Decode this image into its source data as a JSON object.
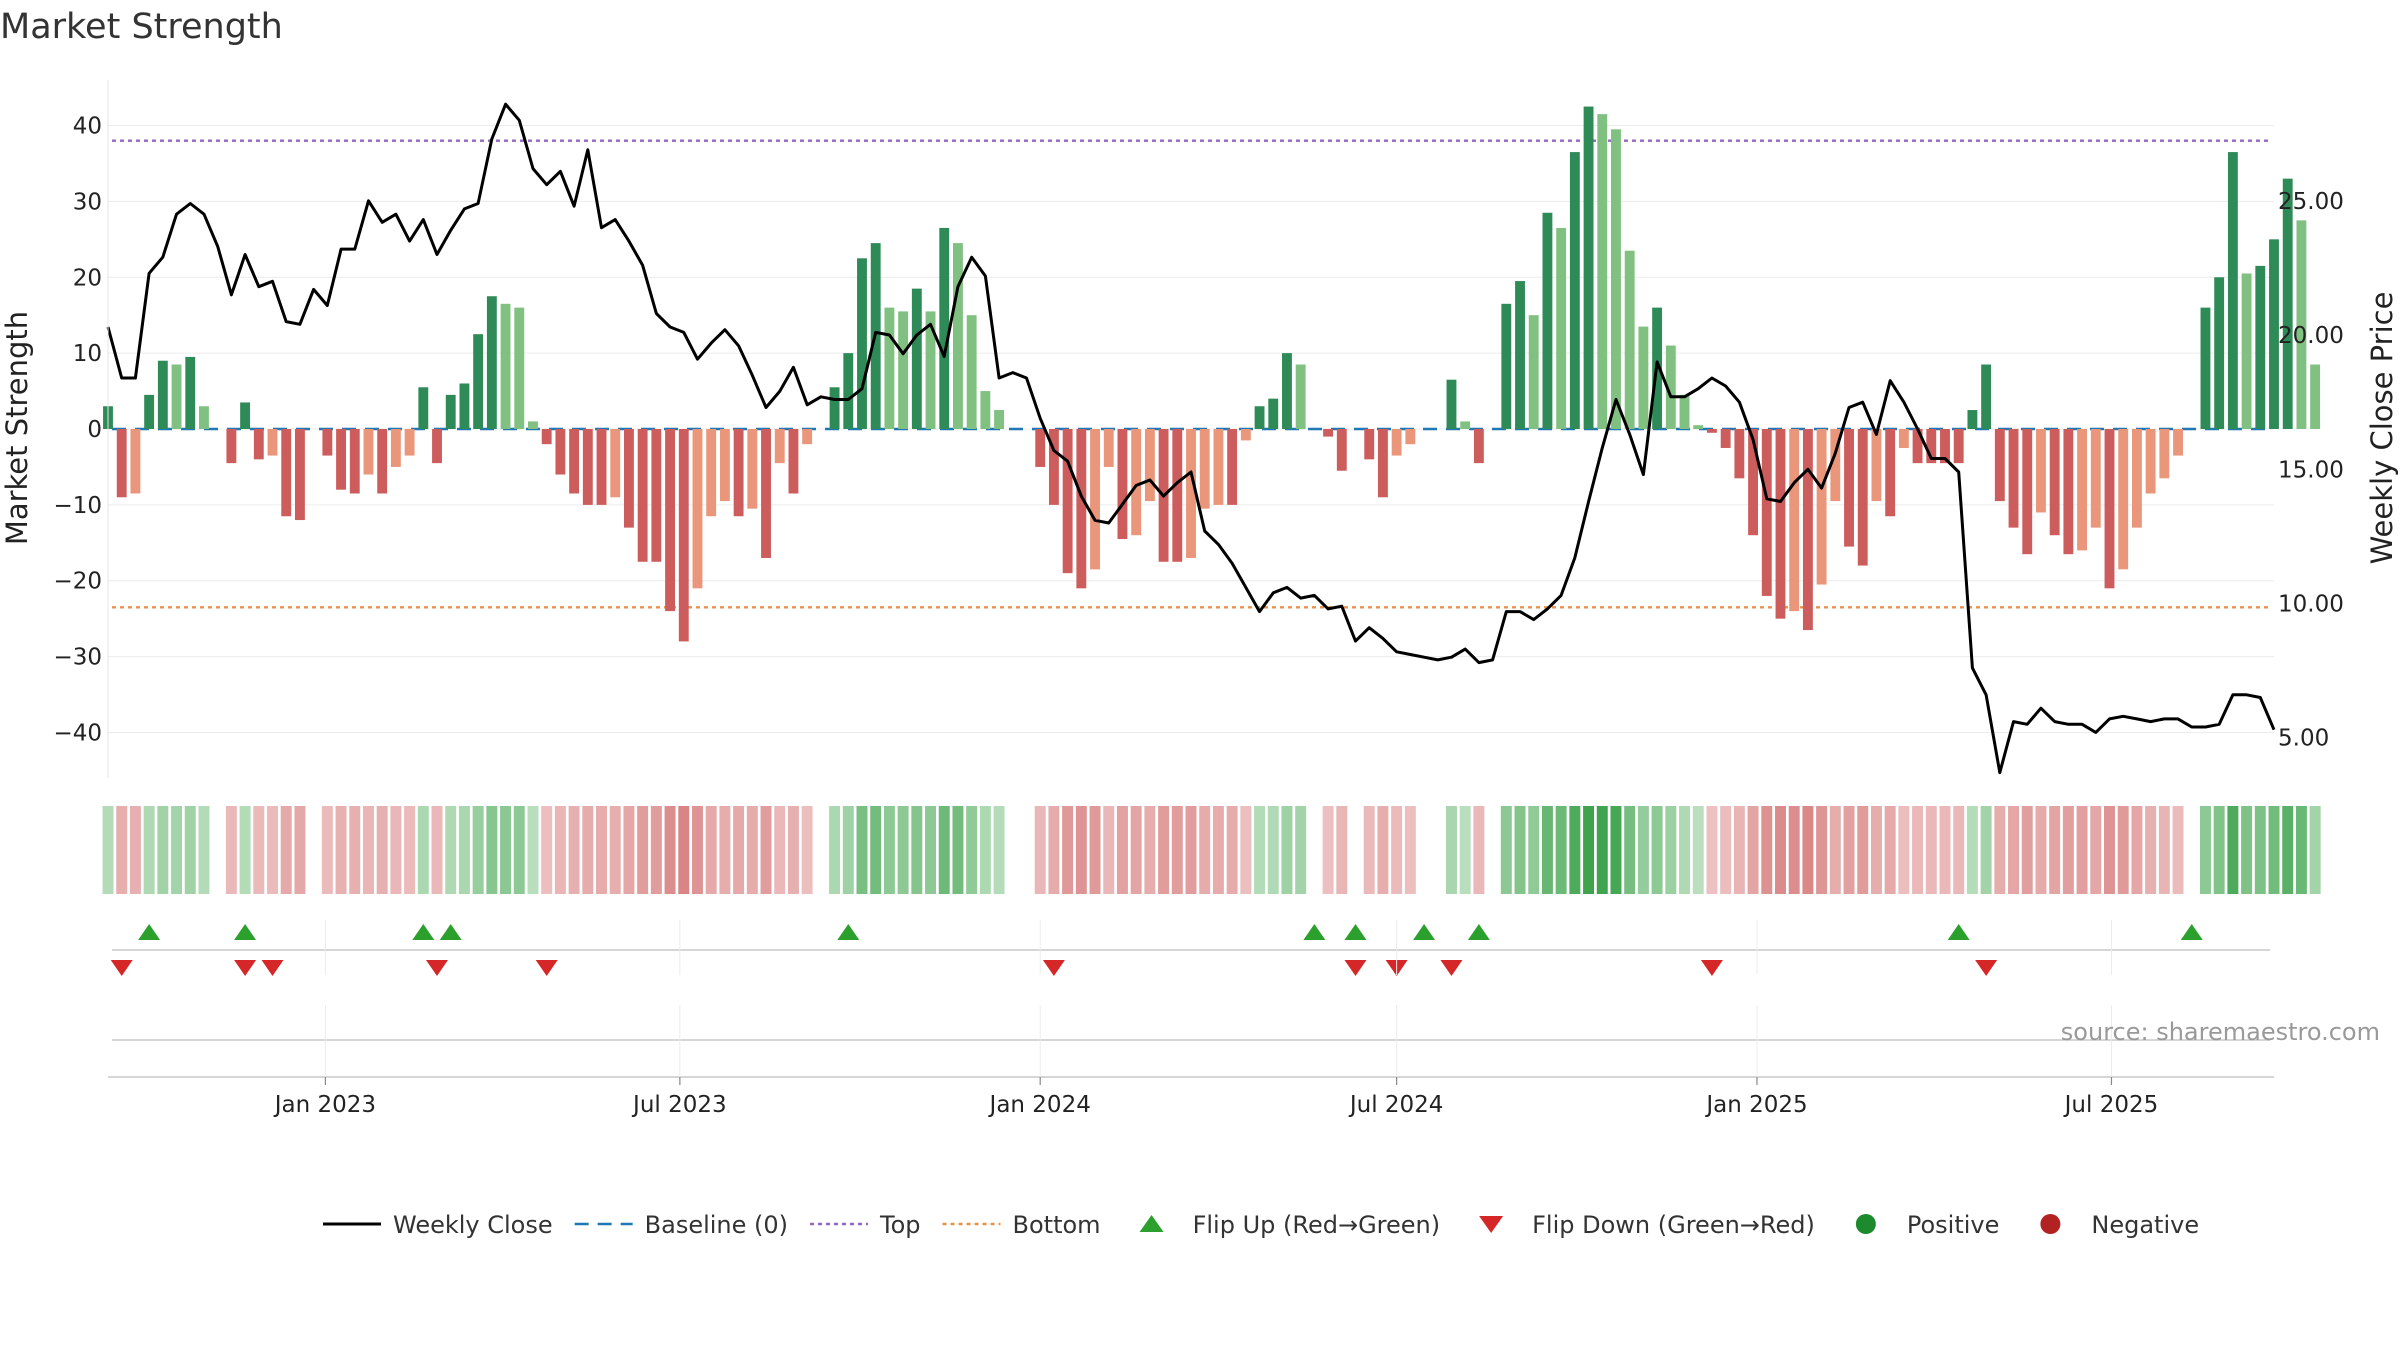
{
  "chart_data": {
    "type": "bar",
    "title": "Market Strength",
    "source": "source: sharemaestro.com",
    "ylabel_left": "Market Strength",
    "ylabel_right": "Weekly Close Price",
    "y_left": {
      "range": [
        -46,
        46
      ],
      "ticks": [
        40,
        30,
        20,
        10,
        0,
        -10,
        -20,
        -30,
        -40
      ],
      "tick_labels": [
        "40",
        "30",
        "20",
        "10",
        "0",
        "−10",
        "−20",
        "−30",
        "−40"
      ]
    },
    "y_right": {
      "range": [
        3.5,
        29.5
      ],
      "ticks": [
        25,
        20,
        15,
        10,
        5
      ],
      "tick_labels": [
        "25.00",
        "20.00",
        "15.00",
        "10.00",
        "5.00"
      ]
    },
    "x_range": [
      "2022-09-12",
      "2025-09-22"
    ],
    "x_ticks": [
      {
        "date": "2023-01-01",
        "label": "Jan 2023"
      },
      {
        "date": "2023-07-01",
        "label": "Jul 2023"
      },
      {
        "date": "2024-01-01",
        "label": "Jan 2024"
      },
      {
        "date": "2024-07-01",
        "label": "Jul 2024"
      },
      {
        "date": "2025-01-01",
        "label": "Jan 2025"
      },
      {
        "date": "2025-07-01",
        "label": "Jul 2025"
      }
    ],
    "start_date": "2022-09-12",
    "week_step_days": 7,
    "lines": {
      "top": 38,
      "baseline": 0,
      "bottom": -23.5
    },
    "strength": [
      3,
      -9,
      -8.5,
      4.5,
      9,
      8.5,
      9.5,
      3,
      0,
      -4.5,
      3.5,
      -4,
      -3.5,
      -11.5,
      -12,
      0,
      -3.5,
      -8,
      -8.5,
      -6,
      -8.5,
      -5,
      -3.5,
      5.5,
      -4.5,
      4.5,
      6,
      12.5,
      17.5,
      16.5,
      16,
      1,
      -2,
      -6,
      -8.5,
      -10,
      -10,
      -9,
      -13,
      -17.5,
      -17.5,
      -24,
      -28,
      -21,
      -11.5,
      -9.5,
      -11.5,
      -10.5,
      -17,
      -4.5,
      -8.5,
      -2,
      0,
      5.5,
      10,
      22.5,
      24.5,
      16,
      15.5,
      18.5,
      15.5,
      26.5,
      24.5,
      15,
      5,
      2.5,
      0,
      0,
      -5,
      -10,
      -19,
      -21,
      -18.5,
      -5,
      -14.5,
      -14,
      -9.5,
      -17.5,
      -17.5,
      -17,
      -10.5,
      -10,
      -10,
      -1.5,
      3,
      4,
      10,
      8.5,
      0,
      -1,
      -5.5,
      0,
      -4,
      -9,
      -3.5,
      -2,
      0,
      0,
      6.5,
      1,
      -4.5,
      0,
      16.5,
      19.5,
      15,
      28.5,
      26.5,
      36.5,
      42.5,
      41.5,
      39.5,
      23.5,
      13.5,
      16,
      11,
      4.5,
      0.5,
      -0.5,
      -2.5,
      -6.5,
      -14,
      -22,
      -25,
      -24,
      -26.5,
      -20.5,
      -9.5,
      -15.5,
      -18,
      -9.5,
      -11.5,
      -2.5,
      -4.5,
      -4.5,
      -4.5,
      -4.5,
      2.5,
      8.5,
      -9.5,
      -13,
      -16.5,
      -11,
      -14,
      -16.5,
      -16,
      -13,
      -21,
      -18.5,
      -13,
      -8.5,
      -6.5,
      -3.5,
      0,
      16,
      20,
      36.5,
      20.5,
      21.5,
      25,
      33,
      27.5,
      8.5
    ],
    "price": [
      20.3,
      18.4,
      18.4,
      22.3,
      22.9,
      24.5,
      24.9,
      24.5,
      23.3,
      21.5,
      23.0,
      21.8,
      22.0,
      20.5,
      20.4,
      21.7,
      21.1,
      23.2,
      23.2,
      25.0,
      24.2,
      24.5,
      23.5,
      24.3,
      23.0,
      23.9,
      24.7,
      24.9,
      27.3,
      28.6,
      28.0,
      26.2,
      25.6,
      26.1,
      24.8,
      26.9,
      24.0,
      24.3,
      23.5,
      22.6,
      20.8,
      20.3,
      20.1,
      19.1,
      19.7,
      20.2,
      19.6,
      18.5,
      17.3,
      17.9,
      18.8,
      17.4,
      17.7,
      17.6,
      17.6,
      18.0,
      20.1,
      20.0,
      19.3,
      20.0,
      20.4,
      19.2,
      21.8,
      22.9,
      22.2,
      18.4,
      18.6,
      18.4,
      16.9,
      15.7,
      15.3,
      14.0,
      13.1,
      13.0,
      13.7,
      14.4,
      14.6,
      14.0,
      14.5,
      14.9,
      12.7,
      12.2,
      11.5,
      10.6,
      9.7,
      10.4,
      10.6,
      10.2,
      10.3,
      9.8,
      9.9,
      8.6,
      9.1,
      8.7,
      8.2,
      8.1,
      8.0,
      7.9,
      8.0,
      8.3,
      7.8,
      7.9,
      9.7,
      9.7,
      9.4,
      9.8,
      10.3,
      11.7,
      13.8,
      15.8,
      17.6,
      16.3,
      14.8,
      19.0,
      17.7,
      17.7,
      18.0,
      18.4,
      18.1,
      17.5,
      16.1,
      13.9,
      13.8,
      14.5,
      15.0,
      14.3,
      15.6,
      17.3,
      17.5,
      16.3,
      18.3,
      17.5,
      16.5,
      15.4,
      15.4,
      14.9,
      7.6,
      6.6,
      3.7,
      5.6,
      5.5,
      6.1,
      5.6,
      5.5,
      5.5,
      5.2,
      5.7,
      5.8,
      5.7,
      5.6,
      5.7,
      5.7,
      5.4,
      5.4,
      5.5,
      6.6,
      6.6,
      6.5,
      5.3
    ],
    "flip_up": [
      "2022-10-03",
      "2022-11-21",
      "2023-02-20",
      "2023-03-06",
      "2023-09-25",
      "2024-05-20",
      "2024-06-10",
      "2024-07-15",
      "2024-08-12",
      "2025-04-14",
      "2025-08-11"
    ],
    "flip_down": [
      "2022-09-19",
      "2022-11-21",
      "2022-12-05",
      "2023-02-27",
      "2023-04-24",
      "2024-01-08",
      "2024-06-10",
      "2024-07-01",
      "2024-07-29",
      "2024-12-09",
      "2025-04-28"
    ],
    "legend": [
      {
        "label": "Weekly Close",
        "kind": "line",
        "color": "#000000"
      },
      {
        "label": "Baseline (0)",
        "kind": "dashed",
        "color": "#1f77b4"
      },
      {
        "label": "Top",
        "kind": "dotted",
        "color": "#9467bd"
      },
      {
        "label": "Bottom",
        "kind": "dotted",
        "color": "#e8924a"
      },
      {
        "label": "Flip Up (Red→Green)",
        "kind": "tri-up",
        "color": "#2ca02c"
      },
      {
        "label": "Flip Down (Green→Red)",
        "kind": "tri-down",
        "color": "#d62728"
      },
      {
        "label": "Positive",
        "kind": "dot",
        "color": "#1e8a2e"
      },
      {
        "label": "Negative",
        "kind": "dot",
        "color": "#b22222"
      }
    ],
    "legend_position": "bottom",
    "colors": {
      "pos_dark": "#2e8b57",
      "pos_light": "#80c080",
      "neg_dark": "#cd5c5c",
      "neg_light": "#e9967a",
      "top": "#9467bd",
      "bottom": "#e8924a",
      "baseline": "#1f77b4",
      "flip_up": "#2ca02c",
      "flip_down": "#d62728"
    },
    "grid": true
  }
}
